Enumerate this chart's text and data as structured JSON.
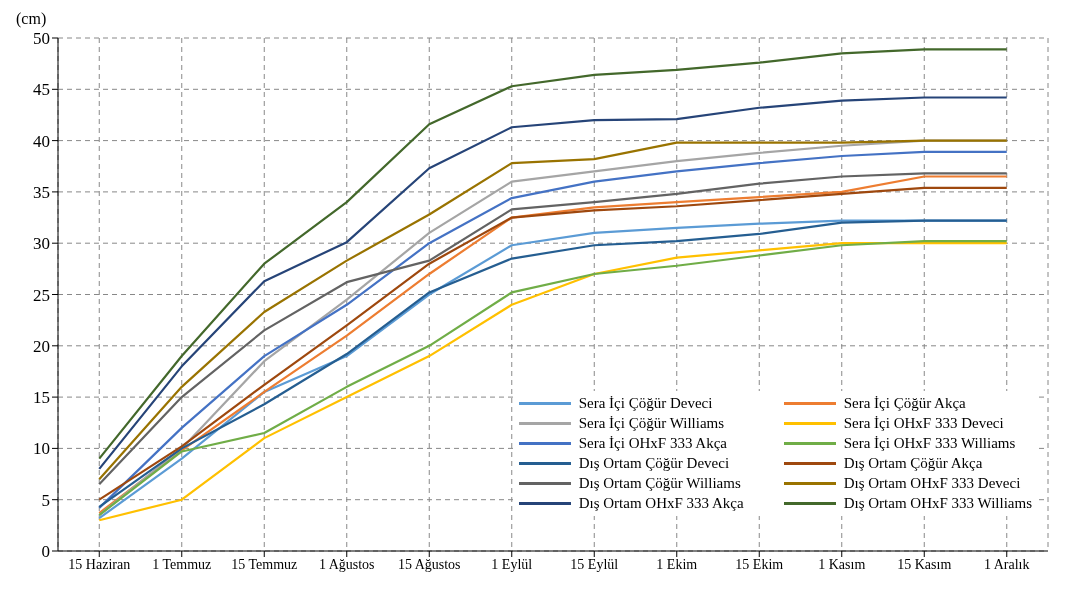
{
  "chart_data": {
    "type": "line",
    "ylabel": "(cm)",
    "categories": [
      "15 Haziran",
      "1 Temmuz",
      "15 Temmuz",
      "1 Ağustos",
      "15 Ağustos",
      "1 Eylül",
      "15 Eylül",
      "1 Ekim",
      "15 Ekim",
      "1 Kasım",
      "15 Kasım",
      "1 Aralık"
    ],
    "series": [
      {
        "name": "Sera İçi Çöğür Deveci",
        "color": "#5b9bd5",
        "values": [
          3.2,
          9,
          15.5,
          19,
          25,
          29.8,
          31,
          31.5,
          31.9,
          32.2,
          32.2,
          32.2
        ]
      },
      {
        "name": "Sera İçi Çöğür Akça",
        "color": "#ed7d31",
        "values": [
          3.7,
          9.8,
          15.5,
          21,
          27,
          32.5,
          33.5,
          34,
          34.5,
          35,
          36.5,
          36.5
        ]
      },
      {
        "name": "Sera İçi Çöğür Williams",
        "color": "#a5a5a5",
        "values": [
          3.5,
          10,
          18.5,
          24.5,
          31,
          36,
          37,
          38,
          38.8,
          39.5,
          40,
          40
        ]
      },
      {
        "name": "Sera İçi OHxF 333 Deveci",
        "color": "#ffc000",
        "values": [
          3,
          5,
          11,
          15,
          19,
          24,
          27,
          28.6,
          29.3,
          30,
          30,
          30
        ]
      },
      {
        "name": "Sera İçi OHxF 333 Akça",
        "color": "#4472c4",
        "values": [
          4.2,
          12,
          19,
          24,
          30,
          34.4,
          36,
          37,
          37.8,
          38.5,
          38.9,
          38.9
        ]
      },
      {
        "name": "Sera İçi OHxF 333 Williams",
        "color": "#70ad47",
        "values": [
          3.5,
          9.7,
          11.5,
          16,
          20,
          25.2,
          27,
          27.8,
          28.8,
          29.8,
          30.2,
          30.2
        ]
      },
      {
        "name": "Dış Ortam Çöğür Deveci",
        "color": "#255e91",
        "values": [
          4.3,
          10,
          14.3,
          19.2,
          25.2,
          28.5,
          29.8,
          30.2,
          30.9,
          32,
          32.2,
          32.2
        ]
      },
      {
        "name": "Dış Ortam Çöğür Akça",
        "color": "#9e480e",
        "values": [
          5,
          10.2,
          16.2,
          22,
          28,
          32.5,
          33.2,
          33.6,
          34.2,
          34.8,
          35.4,
          35.4
        ]
      },
      {
        "name": "Dış Ortam Çöğür Williams",
        "color": "#636363",
        "values": [
          6.5,
          15,
          21.5,
          26.2,
          28.3,
          33.3,
          34,
          34.8,
          35.8,
          36.5,
          36.8,
          36.8
        ]
      },
      {
        "name": "Dış Ortam OHxF 333 Deveci",
        "color": "#997300",
        "values": [
          7,
          16,
          23.3,
          28.3,
          32.8,
          37.8,
          38.2,
          39.8,
          39.8,
          39.8,
          40,
          40
        ]
      },
      {
        "name": "Dış Ortam OHxF 333 Akça",
        "color": "#264478",
        "values": [
          8,
          18,
          26.3,
          30.1,
          37.3,
          41.3,
          42,
          42.1,
          43.2,
          43.9,
          44.2,
          44.2
        ]
      },
      {
        "name": "Dış Ortam OHxF 333 Williams",
        "color": "#43682b",
        "values": [
          9,
          19,
          28,
          34,
          41.6,
          45.3,
          46.4,
          46.9,
          47.6,
          48.5,
          48.9,
          48.9
        ]
      }
    ],
    "ylim": [
      0,
      50
    ],
    "yticks": [
      0,
      5,
      10,
      15,
      20,
      25,
      30,
      35,
      40,
      45,
      50
    ],
    "grid": true,
    "legend": "bottom right",
    "marker": "none",
    "line_style": "solid"
  }
}
